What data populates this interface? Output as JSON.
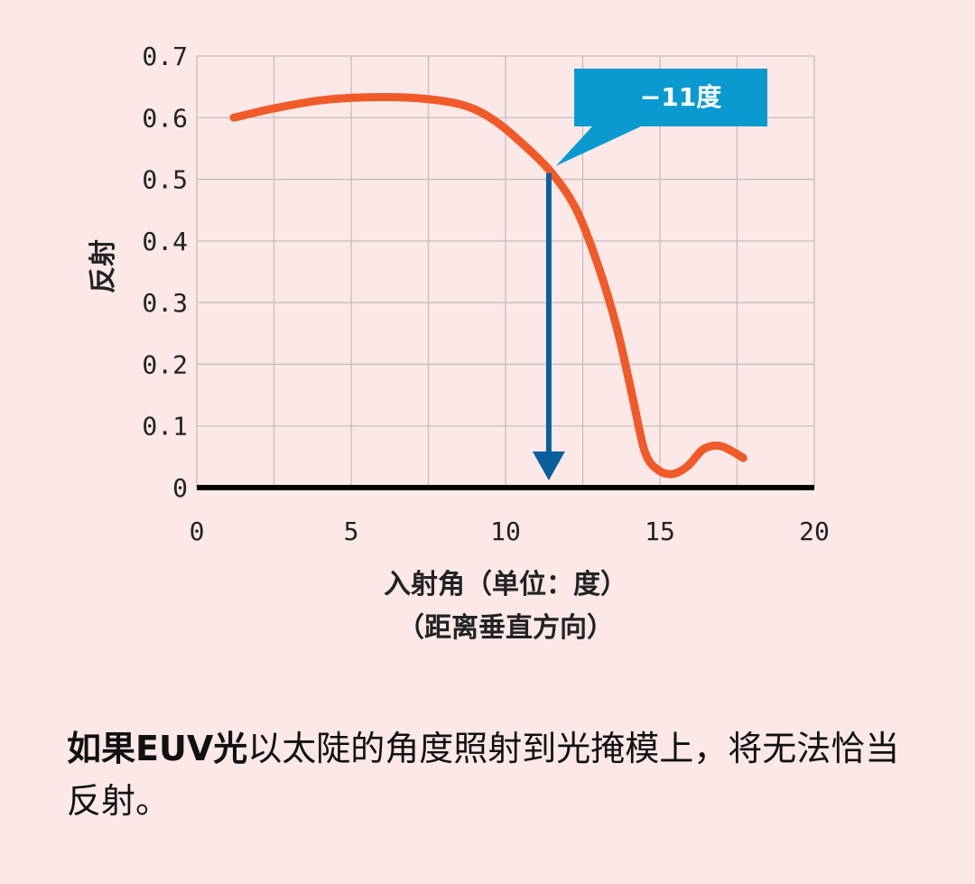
{
  "chart_data": {
    "type": "line",
    "xlabel": "入射角（单位：度）",
    "xlabel_line2": "（距离垂直方向）",
    "ylabel": "反射",
    "xlim": [
      0,
      20
    ],
    "ylim": [
      0,
      0.7
    ],
    "x_ticks": [
      "0",
      "5",
      "10",
      "15",
      "20"
    ],
    "y_ticks": [
      "0",
      "0.1",
      "0.2",
      "0.3",
      "0.4",
      "0.5",
      "0.6",
      "0.7"
    ],
    "grid": true,
    "series": [
      {
        "color": "#f05a28",
        "points": [
          [
            1.2,
            0.6
          ],
          [
            2.5,
            0.615
          ],
          [
            4.0,
            0.628
          ],
          [
            5.5,
            0.633
          ],
          [
            7.0,
            0.632
          ],
          [
            8.5,
            0.622
          ],
          [
            9.5,
            0.6
          ],
          [
            10.5,
            0.56
          ],
          [
            11.5,
            0.51
          ],
          [
            12.3,
            0.45
          ],
          [
            13.0,
            0.36
          ],
          [
            13.6,
            0.26
          ],
          [
            14.1,
            0.15
          ],
          [
            14.5,
            0.06
          ],
          [
            14.9,
            0.03
          ],
          [
            15.4,
            0.022
          ],
          [
            15.9,
            0.035
          ],
          [
            16.4,
            0.062
          ],
          [
            16.9,
            0.068
          ],
          [
            17.3,
            0.06
          ],
          [
            17.7,
            0.048
          ]
        ]
      }
    ],
    "annotation": {
      "label": "−11度",
      "x": 11.4,
      "y": 0.51,
      "arrow_color": "#0a5e9e",
      "box_color": "#0a9ad0"
    },
    "baseline_color": "#000000"
  },
  "caption": {
    "bold": "如果EUV光",
    "rest": "以太陡的角度照射到光掩模上，将无法恰当反射。"
  }
}
